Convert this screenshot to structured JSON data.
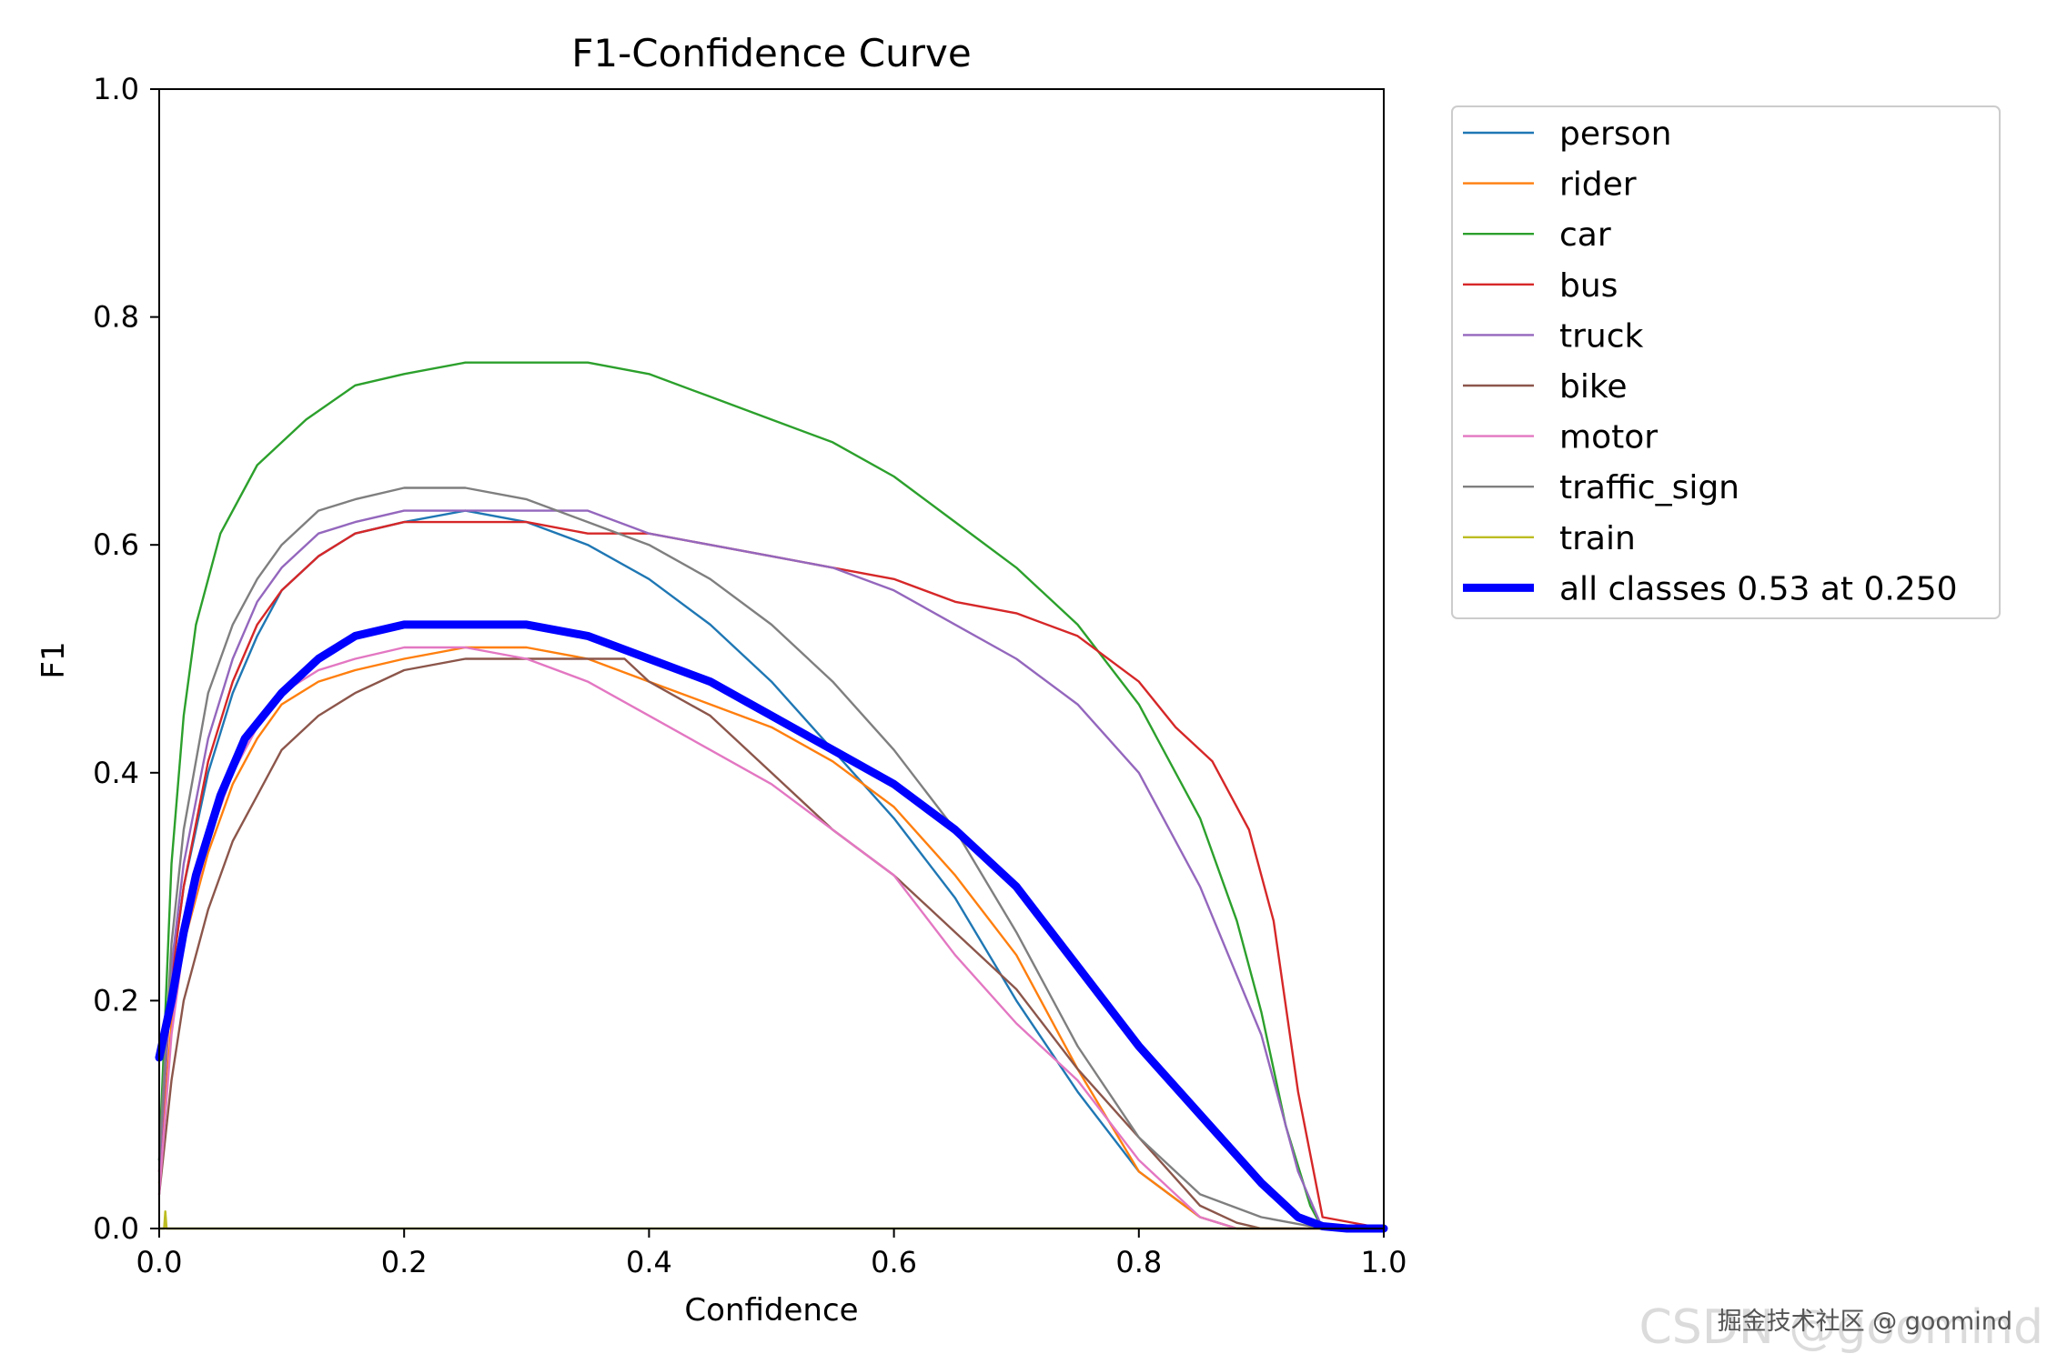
{
  "watermark": {
    "line1": "掘金技术社区 @ goomind",
    "line2": "CSDN @goomind"
  },
  "chart_data": {
    "type": "line",
    "title": "F1-Confidence Curve",
    "xlabel": "Confidence",
    "ylabel": "F1",
    "xlim": [
      0.0,
      1.0
    ],
    "ylim": [
      0.0,
      1.0
    ],
    "xticks": [
      "0.0",
      "0.2",
      "0.4",
      "0.6",
      "0.8",
      "1.0"
    ],
    "yticks": [
      "0.0",
      "0.2",
      "0.4",
      "0.6",
      "0.8",
      "1.0"
    ],
    "grid": false,
    "legend_position": "outside-top-right",
    "series": [
      {
        "name": "person",
        "color": "#1f77b4",
        "width": 1,
        "x": [
          0,
          0.01,
          0.02,
          0.04,
          0.06,
          0.08,
          0.1,
          0.13,
          0.16,
          0.2,
          0.25,
          0.3,
          0.35,
          0.4,
          0.45,
          0.5,
          0.55,
          0.6,
          0.65,
          0.7,
          0.75,
          0.8,
          0.85,
          0.88,
          1.0
        ],
        "y": [
          0.06,
          0.22,
          0.3,
          0.4,
          0.47,
          0.52,
          0.56,
          0.59,
          0.61,
          0.62,
          0.63,
          0.62,
          0.6,
          0.57,
          0.53,
          0.48,
          0.42,
          0.36,
          0.29,
          0.2,
          0.12,
          0.05,
          0.01,
          0.0,
          0.0
        ]
      },
      {
        "name": "rider",
        "color": "#ff7f0e",
        "width": 1,
        "x": [
          0,
          0.01,
          0.02,
          0.04,
          0.06,
          0.08,
          0.1,
          0.13,
          0.16,
          0.2,
          0.25,
          0.3,
          0.35,
          0.4,
          0.45,
          0.5,
          0.55,
          0.6,
          0.65,
          0.7,
          0.75,
          0.8,
          0.85,
          0.88,
          1.0
        ],
        "y": [
          0.04,
          0.18,
          0.25,
          0.33,
          0.39,
          0.43,
          0.46,
          0.48,
          0.49,
          0.5,
          0.51,
          0.51,
          0.5,
          0.48,
          0.46,
          0.44,
          0.41,
          0.37,
          0.31,
          0.24,
          0.14,
          0.05,
          0.01,
          0.0,
          0.0
        ]
      },
      {
        "name": "car",
        "color": "#2ca02c",
        "width": 1,
        "x": [
          0,
          0.01,
          0.02,
          0.03,
          0.05,
          0.08,
          0.12,
          0.16,
          0.2,
          0.25,
          0.3,
          0.35,
          0.4,
          0.45,
          0.5,
          0.55,
          0.6,
          0.65,
          0.7,
          0.75,
          0.8,
          0.85,
          0.88,
          0.9,
          0.92,
          0.94,
          0.95,
          1.0
        ],
        "y": [
          0.06,
          0.32,
          0.45,
          0.53,
          0.61,
          0.67,
          0.71,
          0.74,
          0.75,
          0.76,
          0.76,
          0.76,
          0.75,
          0.73,
          0.71,
          0.69,
          0.66,
          0.62,
          0.58,
          0.53,
          0.46,
          0.36,
          0.27,
          0.19,
          0.09,
          0.02,
          0.0,
          0.0
        ]
      },
      {
        "name": "bus",
        "color": "#d62728",
        "width": 1,
        "x": [
          0,
          0.01,
          0.02,
          0.04,
          0.06,
          0.08,
          0.1,
          0.13,
          0.16,
          0.2,
          0.25,
          0.3,
          0.35,
          0.4,
          0.45,
          0.5,
          0.55,
          0.6,
          0.65,
          0.7,
          0.75,
          0.8,
          0.83,
          0.86,
          0.89,
          0.91,
          0.93,
          0.95,
          1.0
        ],
        "y": [
          0.05,
          0.22,
          0.3,
          0.41,
          0.48,
          0.53,
          0.56,
          0.59,
          0.61,
          0.62,
          0.62,
          0.62,
          0.61,
          0.61,
          0.6,
          0.59,
          0.58,
          0.57,
          0.55,
          0.54,
          0.52,
          0.48,
          0.44,
          0.41,
          0.35,
          0.27,
          0.12,
          0.01,
          0.0
        ]
      },
      {
        "name": "truck",
        "color": "#9467bd",
        "width": 1,
        "x": [
          0,
          0.01,
          0.02,
          0.04,
          0.06,
          0.08,
          0.1,
          0.13,
          0.16,
          0.2,
          0.25,
          0.3,
          0.35,
          0.4,
          0.45,
          0.5,
          0.55,
          0.6,
          0.65,
          0.7,
          0.75,
          0.8,
          0.85,
          0.9,
          0.93,
          0.95,
          1.0
        ],
        "y": [
          0.05,
          0.23,
          0.32,
          0.43,
          0.5,
          0.55,
          0.58,
          0.61,
          0.62,
          0.63,
          0.63,
          0.63,
          0.63,
          0.61,
          0.6,
          0.59,
          0.58,
          0.56,
          0.53,
          0.5,
          0.46,
          0.4,
          0.3,
          0.17,
          0.05,
          0.0,
          0.0
        ]
      },
      {
        "name": "bike",
        "color": "#8c564b",
        "width": 1,
        "x": [
          0,
          0.01,
          0.02,
          0.04,
          0.06,
          0.08,
          0.1,
          0.13,
          0.16,
          0.2,
          0.25,
          0.3,
          0.35,
          0.38,
          0.4,
          0.45,
          0.5,
          0.55,
          0.6,
          0.65,
          0.7,
          0.75,
          0.8,
          0.85,
          0.88,
          0.9,
          1.0
        ],
        "y": [
          0.03,
          0.13,
          0.2,
          0.28,
          0.34,
          0.38,
          0.42,
          0.45,
          0.47,
          0.49,
          0.5,
          0.5,
          0.5,
          0.5,
          0.48,
          0.45,
          0.4,
          0.35,
          0.31,
          0.26,
          0.21,
          0.14,
          0.08,
          0.02,
          0.005,
          0.0,
          0.0
        ]
      },
      {
        "name": "motor",
        "color": "#e377c2",
        "width": 1,
        "x": [
          0,
          0.01,
          0.02,
          0.04,
          0.06,
          0.08,
          0.1,
          0.13,
          0.16,
          0.2,
          0.25,
          0.3,
          0.35,
          0.4,
          0.45,
          0.5,
          0.55,
          0.6,
          0.65,
          0.7,
          0.75,
          0.8,
          0.85,
          0.88,
          0.9,
          1.0
        ],
        "y": [
          0.03,
          0.17,
          0.25,
          0.34,
          0.4,
          0.44,
          0.47,
          0.49,
          0.5,
          0.51,
          0.51,
          0.5,
          0.48,
          0.45,
          0.42,
          0.39,
          0.35,
          0.31,
          0.24,
          0.18,
          0.13,
          0.06,
          0.01,
          0.0,
          0.0,
          0.0
        ]
      },
      {
        "name": "traffic_sign",
        "color": "#7f7f7f",
        "width": 1,
        "x": [
          0,
          0.01,
          0.02,
          0.04,
          0.06,
          0.08,
          0.1,
          0.13,
          0.16,
          0.2,
          0.25,
          0.3,
          0.35,
          0.4,
          0.45,
          0.5,
          0.55,
          0.6,
          0.65,
          0.7,
          0.75,
          0.8,
          0.85,
          0.9,
          0.95,
          1.0
        ],
        "y": [
          0.06,
          0.25,
          0.35,
          0.47,
          0.53,
          0.57,
          0.6,
          0.63,
          0.64,
          0.65,
          0.65,
          0.64,
          0.62,
          0.6,
          0.57,
          0.53,
          0.48,
          0.42,
          0.35,
          0.26,
          0.16,
          0.08,
          0.03,
          0.01,
          0.0,
          0.0
        ]
      },
      {
        "name": "train",
        "color": "#bcbd22",
        "width": 1,
        "x": [
          0,
          0.004,
          0.005,
          0.006,
          0.008,
          1.0
        ],
        "y": [
          0.0,
          0.0,
          0.015,
          0.0,
          0.0,
          0.0
        ]
      },
      {
        "name": "all classes 0.53 at 0.250",
        "color": "#0000ff",
        "width": 4,
        "x": [
          0,
          0.01,
          0.02,
          0.03,
          0.05,
          0.07,
          0.1,
          0.13,
          0.16,
          0.2,
          0.25,
          0.3,
          0.35,
          0.4,
          0.45,
          0.5,
          0.55,
          0.6,
          0.65,
          0.7,
          0.75,
          0.8,
          0.85,
          0.9,
          0.93,
          0.95,
          0.97,
          1.0
        ],
        "y": [
          0.15,
          0.2,
          0.26,
          0.31,
          0.38,
          0.43,
          0.47,
          0.5,
          0.52,
          0.53,
          0.53,
          0.53,
          0.52,
          0.5,
          0.48,
          0.45,
          0.42,
          0.39,
          0.35,
          0.3,
          0.23,
          0.16,
          0.1,
          0.04,
          0.01,
          0.002,
          0.0,
          0.0
        ]
      }
    ]
  }
}
